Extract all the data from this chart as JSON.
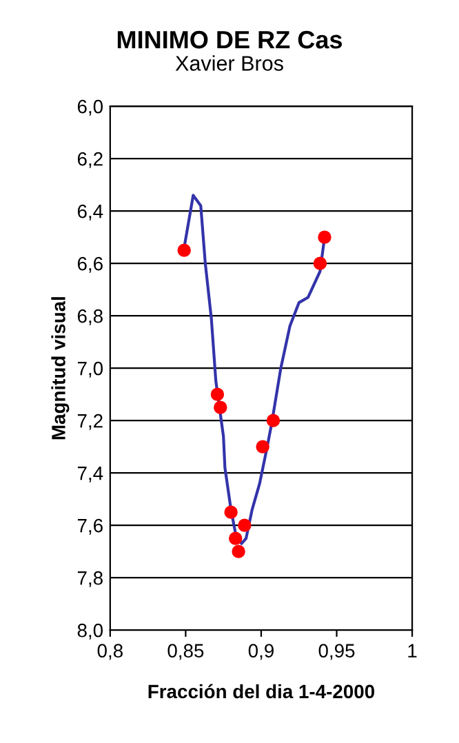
{
  "chart_data": {
    "type": "scatter",
    "title": "MINIMO DE RZ Cas",
    "subtitle": "Xavier Bros",
    "xlabel": "Fracción del dia 1-4-2000",
    "ylabel": "Magnitud visual",
    "xlim": [
      0.8,
      1
    ],
    "ylim": [
      8.0,
      6.0
    ],
    "xticks": [
      {
        "value": 0.8,
        "label": "0,8"
      },
      {
        "value": 0.85,
        "label": "0,85"
      },
      {
        "value": 0.9,
        "label": "0,9"
      },
      {
        "value": 0.95,
        "label": "0,95"
      },
      1
    ],
    "yticks": [
      {
        "value": 6.0,
        "label": "6,0"
      },
      {
        "value": 6.2,
        "label": "6,2"
      },
      {
        "value": 6.4,
        "label": "6,4"
      },
      {
        "value": 6.6,
        "label": "6,6"
      },
      {
        "value": 6.8,
        "label": "6,8"
      },
      {
        "value": 7.0,
        "label": "7,0"
      },
      {
        "value": 7.2,
        "label": "7,2"
      },
      {
        "value": 7.4,
        "label": "7,4"
      },
      {
        "value": 7.6,
        "label": "7,6"
      },
      {
        "value": 7.8,
        "label": "7,8"
      },
      {
        "value": 8.0,
        "label": "8,0"
      }
    ],
    "grid": "y",
    "legend": false,
    "series": [
      {
        "type": "line",
        "color": "#3333aa",
        "marker": "none",
        "line_style": "solid",
        "x": [
          0.849,
          0.855,
          0.86,
          0.863,
          0.867,
          0.87,
          0.875,
          0.876,
          0.88,
          0.883,
          0.887,
          0.89,
          0.894,
          0.899,
          0.904,
          0.907,
          0.913,
          0.919,
          0.925,
          0.931,
          0.935,
          0.939,
          0.942
        ],
        "values": [
          6.54,
          6.34,
          6.38,
          6.6,
          6.81,
          7.05,
          7.26,
          7.38,
          7.54,
          7.63,
          7.67,
          7.65,
          7.54,
          7.44,
          7.3,
          7.21,
          7.0,
          6.84,
          6.75,
          6.73,
          6.68,
          6.63,
          6.5
        ]
      },
      {
        "color": "#ff0000",
        "marker": "circle",
        "x": [
          0.849,
          0.871,
          0.873,
          0.88,
          0.883,
          0.885,
          0.889,
          0.901,
          0.908,
          0.939,
          0.942
        ],
        "values": [
          6.55,
          7.1,
          7.15,
          7.55,
          7.65,
          7.7,
          7.6,
          7.3,
          7.2,
          6.6,
          6.5
        ]
      }
    ]
  }
}
